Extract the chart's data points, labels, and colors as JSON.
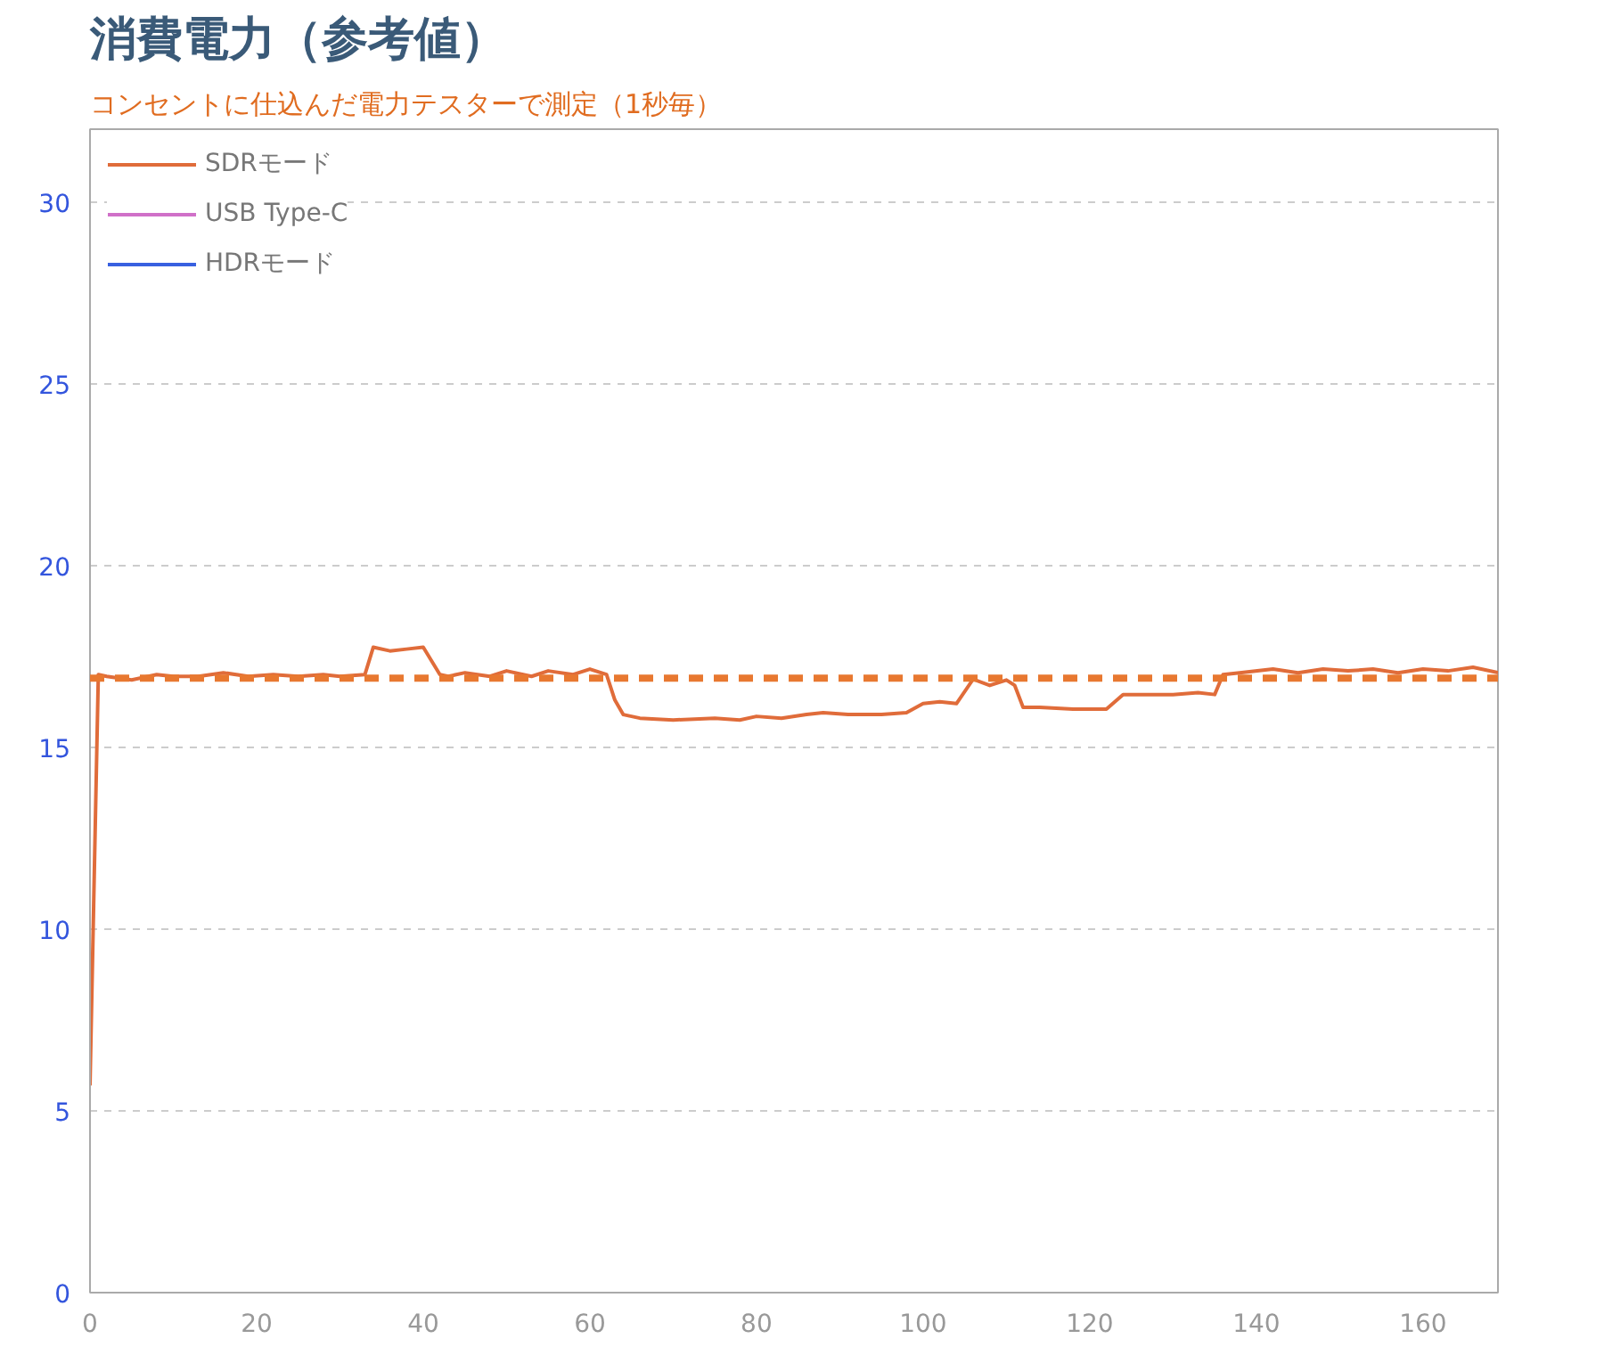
{
  "chart_data": {
    "type": "line",
    "title": "消費電力（参考値）",
    "subtitle": "コンセントに仕込んだ電力テスターで測定（1秒毎）",
    "series": [
      {
        "name": "SDRモード",
        "color": "#e06c3a",
        "x": [
          0,
          1,
          2,
          5,
          8,
          10,
          13,
          16,
          19,
          22,
          25,
          28,
          30,
          33,
          34,
          36,
          38,
          40,
          42,
          43,
          45,
          48,
          50,
          53,
          55,
          58,
          60,
          62,
          63,
          64,
          66,
          70,
          75,
          78,
          80,
          83,
          86,
          88,
          91,
          95,
          98,
          100,
          102,
          104,
          106,
          108,
          110,
          111,
          112,
          114,
          118,
          122,
          124,
          126,
          130,
          133,
          135,
          136,
          138,
          142,
          145,
          148,
          151,
          154,
          157,
          160,
          163,
          166,
          169
        ],
        "values": [
          5.7,
          17.0,
          16.95,
          16.85,
          17.0,
          16.95,
          16.95,
          17.05,
          16.95,
          17.0,
          16.95,
          17.0,
          16.95,
          17.0,
          17.75,
          17.65,
          17.7,
          17.75,
          17.0,
          16.95,
          17.05,
          16.95,
          17.1,
          16.95,
          17.1,
          17.0,
          17.15,
          17.0,
          16.3,
          15.9,
          15.8,
          15.75,
          15.8,
          15.75,
          15.85,
          15.8,
          15.9,
          15.95,
          15.9,
          15.9,
          15.95,
          16.2,
          16.25,
          16.2,
          16.87,
          16.7,
          16.85,
          16.7,
          16.1,
          16.1,
          16.05,
          16.05,
          16.45,
          16.45,
          16.45,
          16.5,
          16.45,
          17.0,
          17.05,
          17.15,
          17.05,
          17.15,
          17.1,
          17.15,
          17.05,
          17.15,
          17.1,
          17.2,
          17.05
        ]
      },
      {
        "name": "USB Type-C",
        "color": "#d070c8"
      },
      {
        "name": "HDRモード",
        "color": "#3860e0"
      }
    ],
    "ref_lines": [
      {
        "axis": "y",
        "value": 16.9,
        "color": "#e87830",
        "line_style": "dashed"
      }
    ],
    "xlim": [
      0,
      169
    ],
    "xticks": [
      0,
      20,
      40,
      60,
      80,
      100,
      120,
      140,
      160
    ],
    "ylim": [
      0,
      32
    ],
    "yticks": [
      0,
      5,
      10,
      15,
      20,
      25,
      30
    ],
    "grid": "y",
    "legend": "top left"
  }
}
